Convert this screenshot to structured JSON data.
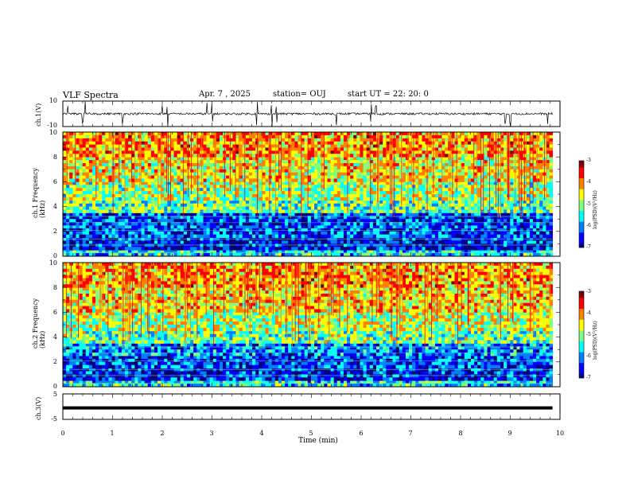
{
  "header": {
    "title": "VLF Spectra",
    "date": "Apr. 7 , 2025",
    "station": "station= OUJ",
    "start": "start UT = 22: 20: 0"
  },
  "colors": {
    "spectrum_scale": [
      "#00007f",
      "#0000ff",
      "#007fff",
      "#00ffff",
      "#7fff7f",
      "#ffff00",
      "#ff7f00",
      "#ff0000",
      "#7f0000"
    ],
    "trace": "#000000"
  },
  "chart_data": [
    {
      "type": "line",
      "ylabel": "ch.1(V)",
      "ylim": [
        -10,
        10
      ],
      "y_ticks": [
        "10",
        "-10"
      ],
      "xlim": [
        0,
        10
      ],
      "baseline_v": 0,
      "spike_times_min": [
        0.1,
        0.4,
        0.45,
        1.2,
        2.0,
        2.1,
        2.9,
        3.0,
        3.9,
        4.2,
        4.3,
        5.5,
        6.2,
        6.3,
        8.9,
        9.0,
        9.75
      ]
    },
    {
      "type": "heatmap",
      "ylabel": "ch.1 Frequency (kHz)",
      "ylim": [
        0,
        10
      ],
      "y_ticks": [
        "0",
        "2",
        "4",
        "6",
        "8",
        "10"
      ],
      "xlim": [
        0,
        9.85
      ],
      "colorbar": {
        "label": "log(PSD)(V²/Hz)",
        "range": [
          -7,
          -3
        ],
        "ticks": [
          "-3",
          "-4",
          "-5",
          "-6",
          "-7"
        ]
      },
      "bands": [
        {
          "f": [
            0,
            0.5
          ],
          "log_psd": -5.6
        },
        {
          "f": [
            0.5,
            1.5
          ],
          "log_psd": -6.5
        },
        {
          "f": [
            1.5,
            2.5
          ],
          "log_psd": -6.2
        },
        {
          "f": [
            2.5,
            3.5
          ],
          "log_psd": -6.3
        },
        {
          "f": [
            3.5,
            4.5
          ],
          "log_psd": -5.2
        },
        {
          "f": [
            4.5,
            6.0
          ],
          "log_psd": -4.9
        },
        {
          "f": [
            6.0,
            8.0
          ],
          "log_psd": -4.5
        },
        {
          "f": [
            8.0,
            10.0
          ],
          "log_psd": -4.1
        }
      ]
    },
    {
      "type": "heatmap",
      "ylabel": "ch.2 Frequency (kHz)",
      "ylim": [
        0,
        10
      ],
      "y_ticks": [
        "0",
        "2",
        "4",
        "6",
        "8",
        "10"
      ],
      "xlim": [
        0,
        9.85
      ],
      "colorbar": {
        "label": "log(PSD)(V²/Hz)",
        "range": [
          -7,
          -3
        ],
        "ticks": [
          "-3",
          "-4",
          "-5",
          "-6",
          "-7"
        ]
      },
      "bands": [
        {
          "f": [
            0,
            0.5
          ],
          "log_psd": -5.5
        },
        {
          "f": [
            0.5,
            1.5
          ],
          "log_psd": -6.4
        },
        {
          "f": [
            1.5,
            2.5
          ],
          "log_psd": -6.3
        },
        {
          "f": [
            2.5,
            3.5
          ],
          "log_psd": -6.0
        },
        {
          "f": [
            3.5,
            4.5
          ],
          "log_psd": -5.1
        },
        {
          "f": [
            4.5,
            6.0
          ],
          "log_psd": -4.8
        },
        {
          "f": [
            6.0,
            8.0
          ],
          "log_psd": -4.4
        },
        {
          "f": [
            8.0,
            10.0
          ],
          "log_psd": -4.1
        }
      ]
    },
    {
      "type": "line",
      "ylabel": "ch.3(V)",
      "ylim": [
        -5,
        5
      ],
      "y_ticks": [
        "5",
        "-5"
      ],
      "xlim": [
        0,
        10
      ],
      "xlabel": "Time (min)",
      "x_ticks": [
        "0",
        "1",
        "2",
        "3",
        "4",
        "5",
        "6",
        "7",
        "8",
        "9",
        "10"
      ],
      "constant_v": -0.5,
      "x_end": 9.85
    }
  ]
}
